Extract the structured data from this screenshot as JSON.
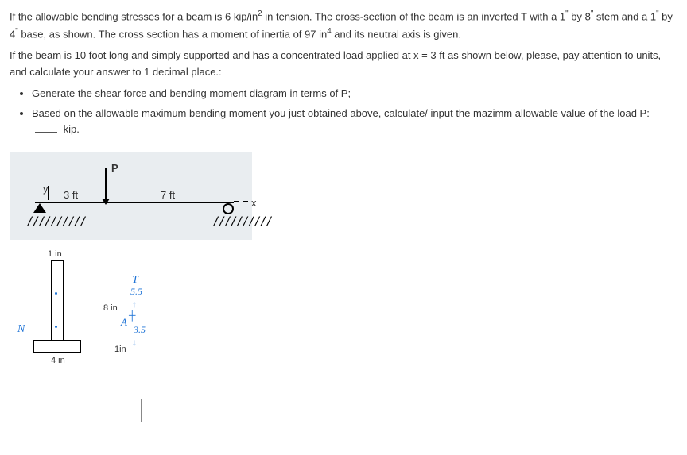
{
  "para1_a": "If the allowable bending stresses for a beam is 6 kip/in",
  "para1_sup1": "2",
  "para1_b": " in tension. The cross-section of the beam is an inverted T with a 1",
  "para1_q1": "\"",
  "para1_c": " by 8",
  "para1_q2": "\"",
  "para1_d": " stem and a 1",
  "para1_q3": "\"",
  "para1_e": " by 4",
  "para1_q4": "\"",
  "para1_f": " base, as shown. The cross section has a moment of inertia of 97 in",
  "para1_sup2": "4",
  "para1_g": " and its neutral axis is given.",
  "para2": "If the beam is 10 foot long and simply supported and has a concentrated load applied at x = 3 ft as shown below, please, pay attention to units, and calculate your answer to 1 decimal place.:",
  "bullet1": "Generate the shear force and bending moment diagram in terms of P;",
  "bullet2_a": "Based on the allowable maximum bending moment you just obtained above, calculate/ input the mazimm allowable value of the load P: ",
  "bullet2_b": " kip.",
  "beam": {
    "P": "P",
    "y": "y",
    "left_span": "3 ft",
    "right_span": "7 ft",
    "x": "x",
    "hatch": "//////////"
  },
  "section": {
    "top_w": "1 in",
    "stem_h": "8 in",
    "flange_w": "4 in",
    "flange_h": "1in",
    "N": "N",
    "A": "A",
    "T": "T",
    "c_top": "5.5",
    "c_bot": "3.5",
    "arrow": "↓",
    "tee": "┼",
    "arrowup": "↑"
  }
}
